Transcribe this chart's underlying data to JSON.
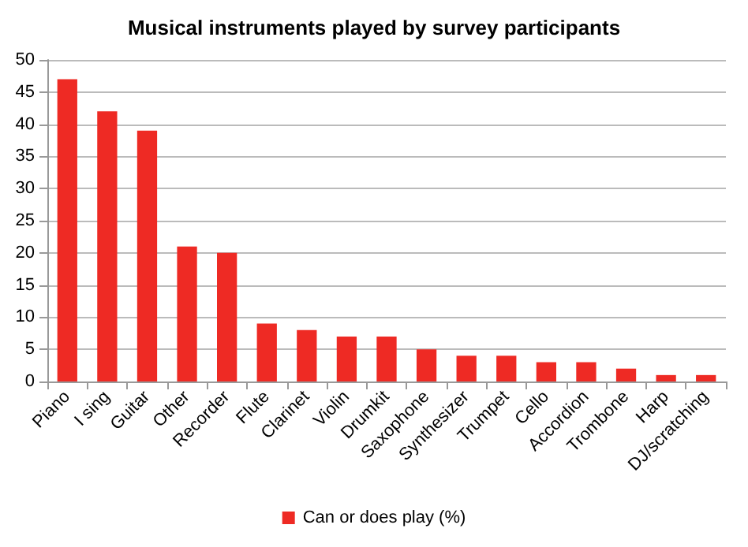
{
  "chart_data": {
    "type": "bar",
    "title": "Musical instruments played by survey participants",
    "categories": [
      "Piano",
      "I sing",
      "Guitar",
      "Other",
      "Recorder",
      "Flute",
      "Clarinet",
      "Violin",
      "Drumkit",
      "Saxophone",
      "Synthesizer",
      "Trumpet",
      "Cello",
      "Accordion",
      "Trombone",
      "Harp",
      "DJ/scratching"
    ],
    "series": [
      {
        "name": "Can or does play (%)",
        "color": "#ee2a24",
        "values": [
          47,
          42,
          39,
          21,
          20,
          9,
          8,
          7,
          7,
          5,
          4,
          4,
          3,
          3,
          2,
          1,
          1
        ]
      }
    ],
    "ylim": [
      0,
      50
    ],
    "yticks": [
      0,
      5,
      10,
      15,
      20,
      25,
      30,
      35,
      40,
      45,
      50
    ],
    "grid": "y",
    "legend": "bottom"
  }
}
